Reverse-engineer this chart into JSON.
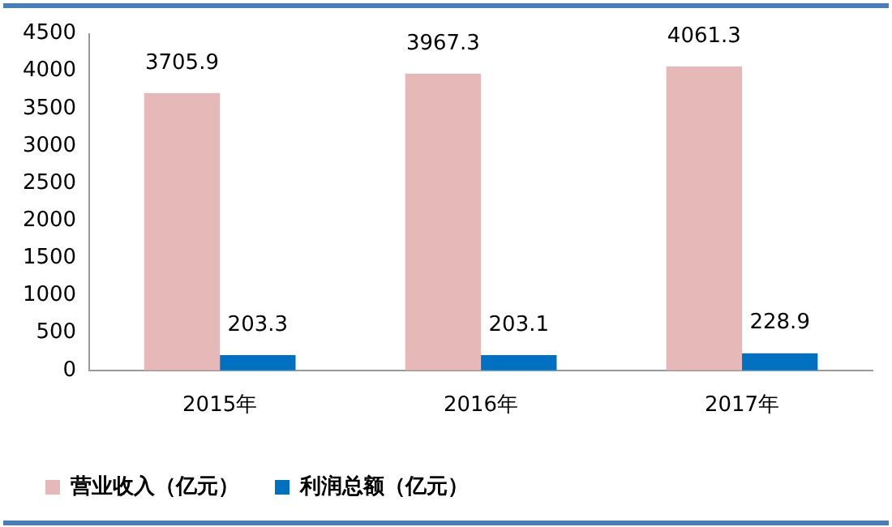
{
  "chart_data": {
    "type": "bar",
    "categories": [
      "2015年",
      "2016年",
      "2017年"
    ],
    "series": [
      {
        "name": "营业收入（亿元）",
        "color": "#e6b9b8",
        "values": [
          3705.9,
          3967.3,
          4061.3
        ]
      },
      {
        "name": "利润总额（亿元）",
        "color": "#0070c0",
        "values": [
          203.3,
          203.1,
          228.9
        ]
      }
    ],
    "ylim": [
      0,
      4500
    ],
    "yticks": [
      0,
      500,
      1000,
      1500,
      2000,
      2500,
      3000,
      3500,
      4000,
      4500
    ],
    "grid": false,
    "legend": "bottom",
    "data_labels": true
  }
}
